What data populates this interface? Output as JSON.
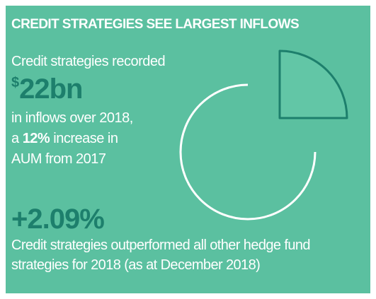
{
  "header": {
    "title": "CREDIT STRATEGIES SEE LARGEST INFLOWS"
  },
  "inflow": {
    "intro": "Credit strategies recorded",
    "currency": "$",
    "amount": "22bn",
    "line1": "in inflows over 2018,",
    "line2_prefix": "a",
    "line2_highlight": "12%",
    "line2_suffix": "increase in",
    "line3": "AUM from 2017"
  },
  "performance": {
    "value": "+2.09%",
    "description": [
      "Credit strategies outperformed all other hedge fund",
      "strategies for 2018 (as at December 2018)"
    ]
  }
}
